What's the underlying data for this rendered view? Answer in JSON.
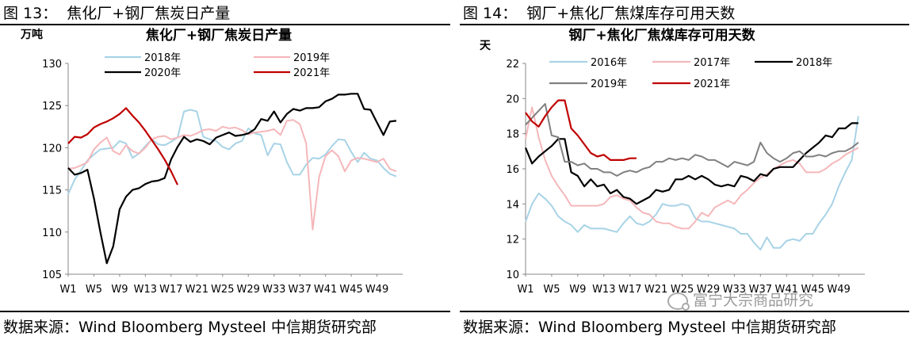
{
  "left": {
    "fig_title": "图 13：  焦化厂+钢厂焦炭日产量",
    "source": "数据来源：Wind Bloomberg Mysteel 中信期货研究部"
  },
  "right": {
    "fig_title": "图 14：  钢厂+焦化厂焦煤库存可用天数",
    "source": "数据来源：Wind Bloomberg Mysteel 中信期货研究部",
    "watermark": "富宁大宗商品研究"
  },
  "chart_data": [
    {
      "type": "line",
      "title": "焦化厂+钢厂焦炭日产量",
      "ylabel": "万吨",
      "ylim": [
        105,
        130
      ],
      "yticks": [
        "105",
        "110",
        "115",
        "120",
        "125",
        "130"
      ],
      "xlim": [
        1,
        53
      ],
      "xticks": [
        "W1",
        "W5",
        "W9",
        "W13",
        "W17",
        "W21",
        "W25",
        "W29",
        "W33",
        "W37",
        "W41",
        "W45",
        "W49"
      ],
      "grid": false,
      "legend": "top",
      "series": [
        {
          "name": "2018年",
          "color": "#a8d3e6",
          "x": [
            1,
            2,
            3,
            4,
            5,
            6,
            7,
            8,
            9,
            10,
            11,
            12,
            13,
            14,
            15,
            16,
            17,
            18,
            19,
            20,
            21,
            22,
            23,
            24,
            25,
            26,
            27,
            28,
            29,
            30,
            31,
            32,
            33,
            34,
            35,
            36,
            37,
            38,
            39,
            40,
            41,
            42,
            43,
            44,
            45,
            46,
            47,
            48,
            49,
            50,
            51,
            52
          ],
          "y": [
            114.5,
            116.2,
            117.3,
            118.5,
            119.2,
            119.8,
            119.9,
            120.0,
            120.8,
            120.5,
            118.8,
            119.3,
            120.2,
            121.0,
            120.4,
            120.3,
            120.7,
            121.2,
            124.3,
            124.5,
            124.3,
            121.3,
            121.0,
            120.8,
            120.1,
            119.8,
            120.5,
            120.8,
            122.3,
            121.7,
            121.5,
            119.1,
            120.5,
            120.4,
            118.3,
            116.8,
            116.8,
            118.0,
            118.8,
            118.7,
            119.2,
            120.2,
            121.0,
            120.9,
            119.5,
            118.3,
            119.4,
            118.7,
            118.5,
            117.6,
            116.9,
            116.6
          ]
        },
        {
          "name": "2019年",
          "color": "#f5b7ba",
          "x": [
            1,
            2,
            3,
            4,
            5,
            6,
            7,
            8,
            9,
            10,
            11,
            12,
            13,
            14,
            15,
            16,
            17,
            18,
            19,
            20,
            21,
            22,
            23,
            24,
            25,
            26,
            27,
            28,
            29,
            30,
            31,
            32,
            33,
            34,
            35,
            36,
            37,
            38,
            39,
            40,
            41,
            42,
            43,
            44,
            45,
            46,
            47,
            48,
            49,
            50,
            51,
            52
          ],
          "y": [
            117.5,
            117.6,
            117.9,
            118.3,
            119.8,
            120.6,
            121.2,
            119.6,
            119.2,
            120.3,
            119.6,
            119.3,
            120.0,
            121.0,
            121.3,
            121.4,
            121.0,
            121.2,
            121.5,
            121.4,
            121.7,
            122.1,
            122.2,
            122.0,
            122.5,
            122.3,
            122.4,
            122.1,
            121.6,
            121.8,
            121.9,
            122.0,
            122.2,
            121.5,
            123.2,
            123.3,
            122.8,
            120.5,
            110.3,
            116.5,
            119.0,
            119.7,
            119.0,
            117.2,
            118.5,
            118.8,
            118.7,
            118.5,
            118.3,
            118.7,
            117.5,
            117.2
          ]
        },
        {
          "name": "2020年",
          "color": "#000000",
          "x": [
            1,
            2,
            3,
            4,
            5,
            6,
            7,
            8,
            9,
            10,
            11,
            12,
            13,
            14,
            15,
            16,
            17,
            18,
            19,
            20,
            21,
            22,
            23,
            24,
            25,
            26,
            27,
            28,
            29,
            30,
            31,
            32,
            33,
            34,
            35,
            36,
            37,
            38,
            39,
            40,
            41,
            42,
            43,
            44,
            45,
            46,
            47,
            48,
            49,
            50,
            51,
            52
          ],
          "y": [
            117.6,
            116.8,
            117.0,
            117.4,
            114.0,
            110.0,
            106.3,
            108.3,
            112.7,
            114.2,
            115.0,
            115.2,
            115.7,
            116.0,
            116.1,
            116.4,
            118.6,
            120.1,
            121.3,
            120.7,
            121.0,
            120.8,
            120.4,
            121.2,
            121.5,
            121.8,
            121.4,
            121.5,
            121.7,
            122.2,
            123.4,
            123.2,
            124.3,
            123.0,
            124.0,
            124.6,
            124.4,
            124.7,
            124.7,
            124.8,
            125.5,
            125.8,
            126.3,
            126.3,
            126.4,
            126.4,
            124.6,
            124.5,
            123.0,
            121.5,
            123.1,
            123.2
          ]
        },
        {
          "name": "2021年",
          "color": "#c00000",
          "x": [
            1,
            2,
            3,
            4,
            5,
            6,
            7,
            8,
            9,
            10,
            11,
            12,
            13,
            14,
            15,
            16,
            17,
            18
          ],
          "y": [
            120.5,
            121.3,
            121.2,
            121.6,
            122.4,
            122.8,
            123.1,
            123.5,
            124.0,
            124.7,
            123.8,
            123.0,
            122.0,
            120.9,
            119.8,
            118.6,
            117.2,
            115.6
          ]
        }
      ]
    },
    {
      "type": "line",
      "title": "钢厂+焦化厂焦煤库存可用天数",
      "ylabel": "天",
      "ylim": [
        10,
        22
      ],
      "yticks": [
        "10",
        "12",
        "14",
        "16",
        "18",
        "20",
        "22"
      ],
      "xlim": [
        1,
        53
      ],
      "xticks": [
        "W1",
        "W5",
        "W9",
        "W13",
        "W17",
        "W21",
        "W25",
        "W29",
        "W33",
        "W37",
        "W41",
        "W45",
        "W49"
      ],
      "grid": false,
      "legend": "top",
      "series": [
        {
          "name": "2016年",
          "color": "#a8d3e6",
          "x": [
            1,
            2,
            3,
            4,
            5,
            6,
            7,
            8,
            9,
            10,
            11,
            12,
            13,
            14,
            15,
            16,
            17,
            18,
            19,
            20,
            21,
            22,
            23,
            24,
            25,
            26,
            27,
            28,
            29,
            30,
            31,
            32,
            33,
            34,
            35,
            36,
            37,
            38,
            39,
            40,
            41,
            42,
            43,
            44,
            45,
            46,
            47,
            48,
            49,
            50,
            51,
            52
          ],
          "y": [
            13.0,
            14.0,
            14.6,
            14.3,
            13.9,
            13.3,
            13.0,
            12.8,
            12.4,
            12.8,
            12.6,
            12.6,
            12.6,
            12.5,
            12.4,
            12.9,
            13.3,
            12.9,
            12.8,
            13.0,
            13.4,
            14.0,
            13.9,
            13.9,
            14.0,
            13.9,
            13.2,
            13.0,
            13.0,
            12.9,
            12.8,
            12.7,
            12.6,
            12.3,
            12.3,
            11.8,
            11.4,
            12.1,
            11.5,
            11.5,
            11.9,
            12.0,
            11.9,
            12.3,
            12.3,
            12.9,
            13.4,
            14.0,
            15.0,
            15.8,
            16.5,
            19.0
          ]
        },
        {
          "name": "2017年",
          "color": "#f5b7ba",
          "x": [
            1,
            2,
            3,
            4,
            5,
            6,
            7,
            8,
            9,
            10,
            11,
            12,
            13,
            14,
            15,
            16,
            17,
            18,
            19,
            20,
            21,
            22,
            23,
            24,
            25,
            26,
            27,
            28,
            29,
            30,
            31,
            32,
            33,
            34,
            35,
            36,
            37,
            38,
            39,
            40,
            41,
            42,
            43,
            44,
            45,
            46,
            47,
            48,
            49,
            50,
            51,
            52
          ],
          "y": [
            17.7,
            19.5,
            17.8,
            16.5,
            15.6,
            15.0,
            14.5,
            13.9,
            13.9,
            13.9,
            13.9,
            13.9,
            14.0,
            14.4,
            14.5,
            14.3,
            14.2,
            13.8,
            13.5,
            13.4,
            13.0,
            12.9,
            12.9,
            12.7,
            12.6,
            12.6,
            13.0,
            13.5,
            13.3,
            13.8,
            14.0,
            14.2,
            14.0,
            14.5,
            14.8,
            15.2,
            15.5,
            15.7,
            16.0,
            16.2,
            16.4,
            16.5,
            16.3,
            15.8,
            15.8,
            15.8,
            16.0,
            16.3,
            16.5,
            16.8,
            17.0,
            17.2
          ]
        },
        {
          "name": "2018年",
          "color": "#000000",
          "x": [
            1,
            2,
            3,
            4,
            5,
            6,
            7,
            8,
            9,
            10,
            11,
            12,
            13,
            14,
            15,
            16,
            17,
            18,
            19,
            20,
            21,
            22,
            23,
            24,
            25,
            26,
            27,
            28,
            29,
            30,
            31,
            32,
            33,
            34,
            35,
            36,
            37,
            38,
            39,
            40,
            41,
            42,
            43,
            44,
            45,
            46,
            47,
            48,
            49,
            50,
            51,
            52
          ],
          "y": [
            17.2,
            16.3,
            16.7,
            17.0,
            17.3,
            17.7,
            17.7,
            15.8,
            15.6,
            15.0,
            15.4,
            15.0,
            15.1,
            14.6,
            14.8,
            14.4,
            14.3,
            14.0,
            14.2,
            14.4,
            14.8,
            14.7,
            14.8,
            15.4,
            15.4,
            15.6,
            15.4,
            15.6,
            15.4,
            15.1,
            15.0,
            15.1,
            15.0,
            15.6,
            15.5,
            15.3,
            15.7,
            15.6,
            16.0,
            16.1,
            16.1,
            16.1,
            16.5,
            16.9,
            17.2,
            17.5,
            17.9,
            17.8,
            18.3,
            18.3,
            18.6,
            18.6
          ]
        },
        {
          "name": "2019年",
          "color": "#808080",
          "x": [
            1,
            2,
            3,
            4,
            5,
            6,
            7,
            8,
            9,
            10,
            11,
            12,
            13,
            14,
            15,
            16,
            17,
            18,
            19,
            20,
            21,
            22,
            23,
            24,
            25,
            26,
            27,
            28,
            29,
            30,
            31,
            32,
            33,
            34,
            35,
            36,
            37,
            38,
            39,
            40,
            41,
            42,
            43,
            44,
            45,
            46,
            47,
            48,
            49,
            50,
            51,
            52
          ],
          "y": [
            18.5,
            18.9,
            19.3,
            19.7,
            17.9,
            17.8,
            16.4,
            16.4,
            16.2,
            16.3,
            16.0,
            16.0,
            15.8,
            15.8,
            15.6,
            15.8,
            15.9,
            15.8,
            16.0,
            16.1,
            16.4,
            16.4,
            16.6,
            16.5,
            16.6,
            16.5,
            16.8,
            16.7,
            16.5,
            16.5,
            16.3,
            16.1,
            16.4,
            16.3,
            16.2,
            16.4,
            17.5,
            16.9,
            16.6,
            16.4,
            16.6,
            16.9,
            17.0,
            16.7,
            16.7,
            16.8,
            16.7,
            16.9,
            17.0,
            17.0,
            17.2,
            17.5
          ]
        },
        {
          "name": "2021年",
          "color": "#c00000",
          "x": [
            1,
            2,
            3,
            4,
            5,
            6,
            7,
            8,
            9,
            10,
            11,
            12,
            13,
            14,
            15,
            16,
            17,
            18
          ],
          "y": [
            19.2,
            18.7,
            18.4,
            19.0,
            19.5,
            19.9,
            19.9,
            18.3,
            17.9,
            17.4,
            16.9,
            16.7,
            16.8,
            16.5,
            16.5,
            16.5,
            16.6,
            16.6
          ]
        }
      ]
    }
  ]
}
